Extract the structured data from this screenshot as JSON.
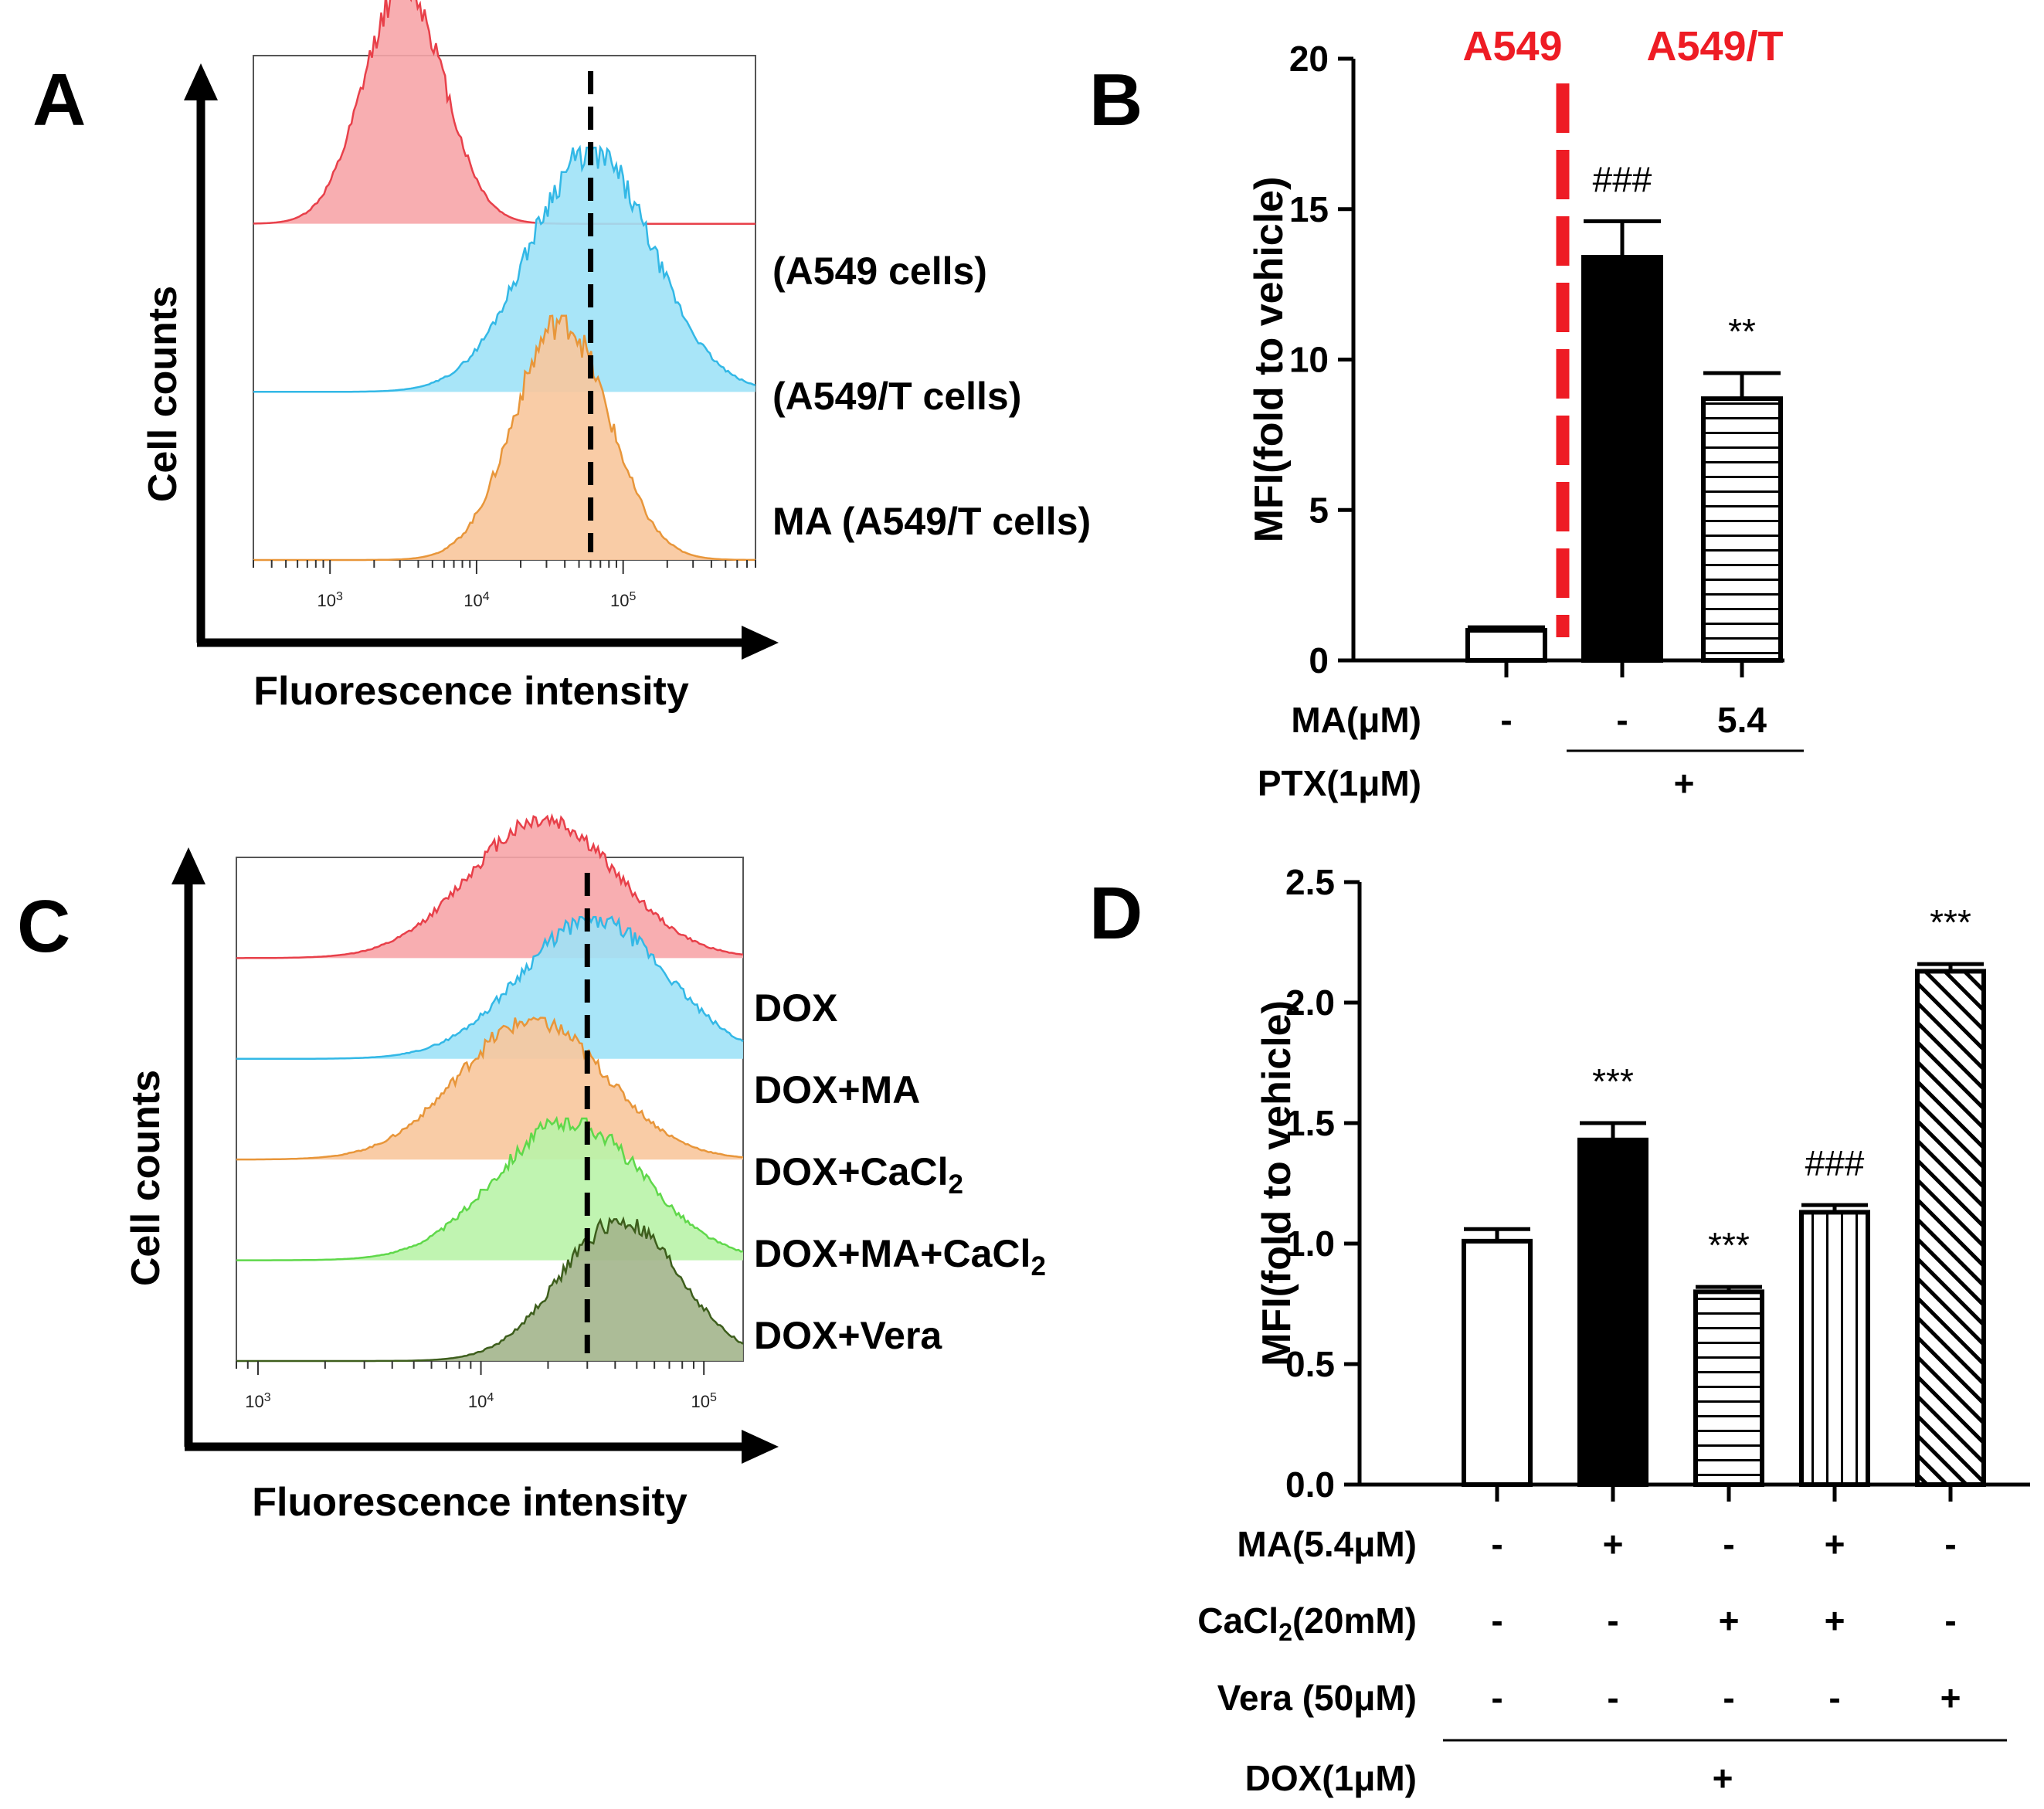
{
  "chart_data": [
    {
      "panel": "A",
      "type": "histogram",
      "xlabel": "Fluorescence intensity",
      "ylabel": "Cell counts",
      "xscale": "log",
      "xlim": [
        300,
        800000
      ],
      "xticks": [
        {
          "value": 1000,
          "label": "10^3"
        },
        {
          "value": 10000,
          "label": "10^4"
        },
        {
          "value": 100000,
          "label": "10^5"
        }
      ],
      "reference_line": 60000,
      "series": [
        {
          "name": "(A549 cells)",
          "color": "#e8404a",
          "fill": "#f7a5a9",
          "peak": 3200,
          "spread": 0.27
        },
        {
          "name": "(A549/T cells)",
          "color": "#33b8e6",
          "fill": "#9ee2f7",
          "peak": 60000,
          "spread": 0.42
        },
        {
          "name": "MA (A549/T cells)",
          "color": "#e8963a",
          "fill": "#f8c79c",
          "peak": 38000,
          "spread": 0.32
        }
      ]
    },
    {
      "panel": "B",
      "type": "bar",
      "ylabel": "MFI(fold to vehicle)",
      "ylim": [
        0,
        20
      ],
      "yticks": [
        0,
        5,
        10,
        15,
        20
      ],
      "values": [
        1.0,
        13.4,
        8.7
      ],
      "errors": [
        0.1,
        1.2,
        0.85
      ],
      "patterns": [
        "open",
        "solid",
        "horizontal"
      ],
      "significance": [
        "",
        "###",
        "**"
      ],
      "groups": [
        "A549",
        "A549/T"
      ],
      "conditions": [
        {
          "name": "MA(μM)",
          "values": [
            "-",
            "-",
            "5.4"
          ]
        },
        {
          "name": "PTX(1μM)",
          "group_value": "+"
        }
      ]
    },
    {
      "panel": "C",
      "type": "histogram",
      "xlabel": "Fluorescence intensity",
      "ylabel": "Cell counts",
      "xscale": "log",
      "xlim": [
        800,
        150000
      ],
      "xticks": [
        {
          "value": 1000,
          "label": "10^3"
        },
        {
          "value": 10000,
          "label": "10^4"
        },
        {
          "value": 100000,
          "label": "10^5"
        }
      ],
      "reference_line": 30000,
      "series": [
        {
          "name": "DOX",
          "color": "#e8404a",
          "fill": "#f7a5a9",
          "peak": 19000,
          "spread": 0.33
        },
        {
          "name": "DOX+MA",
          "color": "#33b8e6",
          "fill": "#9ee2f7",
          "peak": 32000,
          "spread": 0.33
        },
        {
          "name": "DOX+CaCl",
          "subscript": "2",
          "color": "#e8963a",
          "fill": "#f8c79c",
          "peak": 17000,
          "spread": 0.33
        },
        {
          "name": "DOX+MA+CaCl",
          "subscript": "2",
          "color": "#5fd84a",
          "fill": "#b9f3a8",
          "peak": 25000,
          "spread": 0.33
        },
        {
          "name": "DOX+Vera",
          "color": "#3d5e1c",
          "fill": "#a3b58c",
          "peak": 42000,
          "spread": 0.27
        }
      ]
    },
    {
      "panel": "D",
      "type": "bar",
      "ylabel": "MFI(fold to vehicle)",
      "ylim": [
        0,
        2.5
      ],
      "yticks": [
        "0.0",
        "0.5",
        "1.0",
        "1.5",
        "2.0",
        "2.5"
      ],
      "values": [
        1.01,
        1.43,
        0.8,
        1.13,
        2.13
      ],
      "errors": [
        0.05,
        0.07,
        0.02,
        0.03,
        0.03
      ],
      "patterns": [
        "open",
        "solid",
        "horizontal",
        "vertical",
        "diagonal"
      ],
      "significance": [
        "",
        "***",
        "***",
        "###",
        "***"
      ],
      "conditions": [
        {
          "name": "MA(5.4μM)",
          "values": [
            "-",
            "+",
            "-",
            "+",
            "-"
          ]
        },
        {
          "name": "CaCl",
          "subscript": "2",
          "suffix": "(20mM)",
          "values": [
            "-",
            "-",
            "+",
            "+",
            "-"
          ]
        },
        {
          "name": "Vera (50μM)",
          "values": [
            "-",
            "-",
            "-",
            "-",
            "+"
          ]
        },
        {
          "name": "DOX(1μM)",
          "group_value": "+"
        }
      ]
    }
  ]
}
